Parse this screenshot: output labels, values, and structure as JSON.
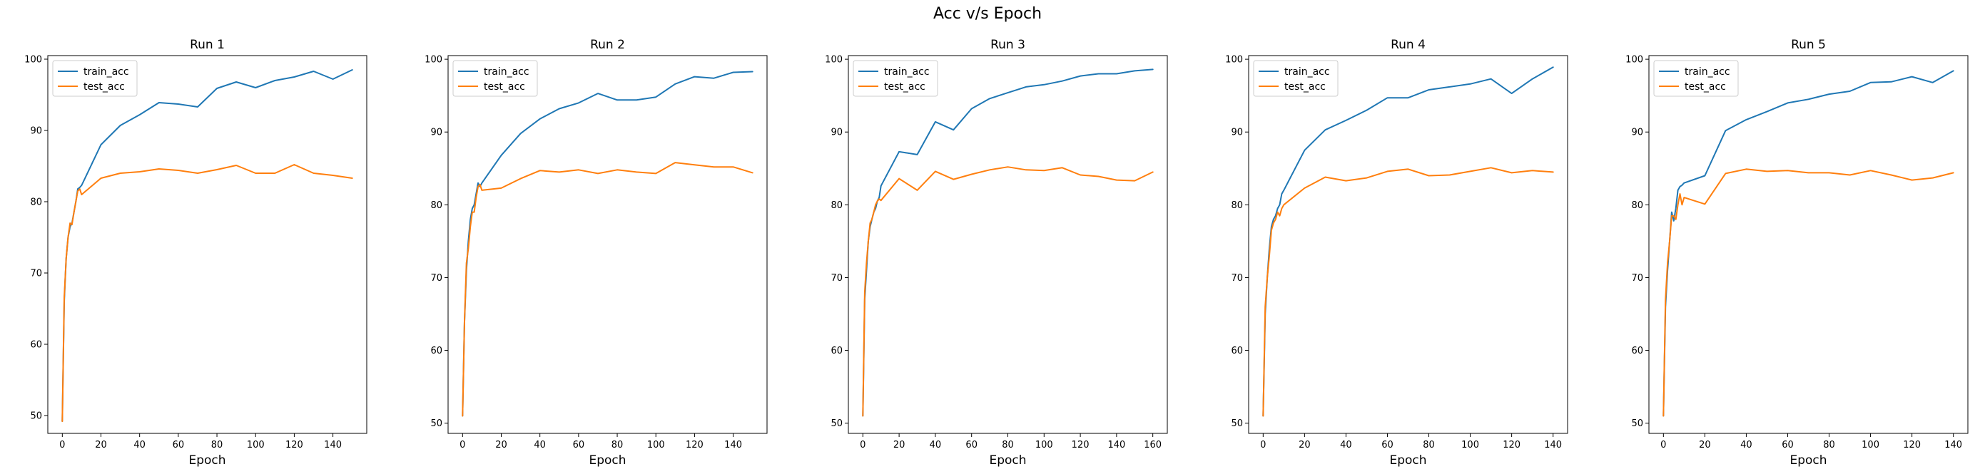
{
  "figure_title": "Acc v/s Epoch",
  "colors": {
    "train": "#1f77b4",
    "test": "#ff7f0e"
  },
  "chart_data": [
    {
      "type": "line",
      "title": "Run 1",
      "xlabel": "Epoch",
      "ylabel": "",
      "xlim": [
        -7.5,
        157.5
      ],
      "ylim": [
        47.5,
        100.5
      ],
      "xticks": [
        0,
        20,
        40,
        60,
        80,
        100,
        120,
        140
      ],
      "yticks": [
        50,
        60,
        70,
        80,
        90,
        100
      ],
      "legend": "top-left",
      "series": [
        {
          "name": "train_acc",
          "x": [
            0,
            1,
            2,
            3,
            4,
            5,
            6,
            7,
            8,
            9,
            10,
            20,
            30,
            40,
            50,
            60,
            70,
            80,
            90,
            100,
            110,
            120,
            130,
            140,
            150
          ],
          "y": [
            49.2,
            66,
            72,
            75,
            76.5,
            77,
            78.5,
            80,
            81.8,
            82,
            82.3,
            88,
            90.7,
            92.2,
            93.9,
            93.7,
            93.3,
            95.9,
            96.8,
            96,
            97,
            97.5,
            98.3,
            97.2,
            98.5
          ]
        },
        {
          "name": "test_acc",
          "x": [
            0,
            1,
            2,
            3,
            4,
            5,
            6,
            7,
            8,
            9,
            10,
            20,
            30,
            40,
            50,
            60,
            70,
            80,
            90,
            100,
            110,
            120,
            130,
            140,
            150
          ],
          "y": [
            49.2,
            66.5,
            72,
            75,
            77,
            76.8,
            78.5,
            80,
            81.5,
            81.8,
            81,
            83.3,
            84,
            84.2,
            84.6,
            84.4,
            84,
            84.5,
            85.1,
            84,
            84,
            85.2,
            84,
            83.7,
            83.3
          ]
        }
      ]
    },
    {
      "type": "line",
      "title": "Run 2",
      "xlabel": "Epoch",
      "ylabel": "",
      "xlim": [
        -7.5,
        157.5
      ],
      "ylim": [
        48.6,
        100.5
      ],
      "xticks": [
        0,
        20,
        40,
        60,
        80,
        100,
        120,
        140
      ],
      "yticks": [
        50,
        60,
        70,
        80,
        90,
        100
      ],
      "legend": "top-left",
      "series": [
        {
          "name": "train_acc",
          "x": [
            0,
            1,
            2,
            3,
            4,
            5,
            6,
            7,
            8,
            9,
            10,
            20,
            30,
            40,
            50,
            60,
            70,
            80,
            90,
            100,
            110,
            120,
            130,
            140,
            150
          ],
          "y": [
            51,
            64,
            71,
            75,
            78,
            79.5,
            80,
            81.5,
            83,
            82.5,
            83,
            86.8,
            89.8,
            91.8,
            93.2,
            94,
            95.3,
            94.4,
            94.4,
            94.8,
            96.6,
            97.6,
            97.4,
            98.2,
            98.3
          ]
        },
        {
          "name": "test_acc",
          "x": [
            0,
            1,
            2,
            3,
            4,
            5,
            6,
            7,
            8,
            9,
            10,
            20,
            30,
            40,
            50,
            60,
            70,
            80,
            90,
            100,
            110,
            120,
            130,
            140,
            150
          ],
          "y": [
            51,
            64,
            72,
            74,
            77,
            79,
            79,
            81,
            82.5,
            82.8,
            82,
            82.3,
            83.6,
            84.7,
            84.5,
            84.8,
            84.3,
            84.8,
            84.5,
            84.3,
            85.8,
            85.5,
            85.2,
            85.2,
            84.4
          ]
        }
      ]
    },
    {
      "type": "line",
      "title": "Run 3",
      "xlabel": "Epoch",
      "ylabel": "",
      "xlim": [
        -8,
        168
      ],
      "ylim": [
        48.6,
        100.5
      ],
      "xticks": [
        0,
        20,
        40,
        60,
        80,
        100,
        120,
        140,
        160
      ],
      "yticks": [
        50,
        60,
        70,
        80,
        90,
        100
      ],
      "legend": "top-left",
      "series": [
        {
          "name": "train_acc",
          "x": [
            0,
            1,
            2,
            3,
            4,
            5,
            6,
            7,
            8,
            9,
            10,
            20,
            30,
            40,
            50,
            60,
            70,
            80,
            90,
            100,
            110,
            120,
            130,
            140,
            150,
            160
          ],
          "y": [
            51,
            67,
            71,
            75,
            77,
            78,
            79,
            79.5,
            80.5,
            81,
            82.6,
            87.3,
            86.9,
            91.4,
            90.3,
            93.2,
            94.6,
            95.4,
            96.2,
            96.5,
            97,
            97.7,
            98,
            98,
            98.4,
            98.6
          ]
        },
        {
          "name": "test_acc",
          "x": [
            0,
            1,
            2,
            3,
            4,
            5,
            6,
            7,
            8,
            9,
            10,
            20,
            30,
            40,
            50,
            60,
            70,
            80,
            90,
            100,
            110,
            120,
            130,
            140,
            150,
            160
          ],
          "y": [
            51,
            68,
            72,
            75,
            77.5,
            78,
            79,
            80,
            80.5,
            80.8,
            80.6,
            83.6,
            82,
            84.6,
            83.5,
            84.2,
            84.8,
            85.2,
            84.8,
            84.7,
            85.1,
            84.1,
            83.9,
            83.4,
            83.3,
            84.5
          ]
        }
      ]
    },
    {
      "type": "line",
      "title": "Run 4",
      "xlabel": "Epoch",
      "ylabel": "",
      "xlim": [
        -7,
        147
      ],
      "ylim": [
        48.6,
        100.5
      ],
      "xticks": [
        0,
        20,
        40,
        60,
        80,
        100,
        120,
        140
      ],
      "yticks": [
        50,
        60,
        70,
        80,
        90,
        100
      ],
      "legend": "top-left",
      "series": [
        {
          "name": "train_acc",
          "x": [
            0,
            1,
            2,
            3,
            4,
            5,
            6,
            7,
            8,
            9,
            10,
            20,
            30,
            40,
            50,
            60,
            70,
            80,
            90,
            100,
            110,
            120,
            130,
            140
          ],
          "y": [
            51,
            65,
            70,
            74,
            77,
            78,
            78.5,
            79.5,
            80,
            81.5,
            82,
            87.5,
            90.3,
            91.6,
            93,
            94.7,
            94.7,
            95.8,
            96.2,
            96.6,
            97.3,
            95.3,
            97.3,
            98.9
          ]
        },
        {
          "name": "test_acc",
          "x": [
            0,
            1,
            2,
            3,
            4,
            5,
            6,
            7,
            8,
            9,
            10,
            20,
            30,
            40,
            50,
            60,
            70,
            80,
            90,
            100,
            110,
            120,
            130,
            140
          ],
          "y": [
            51,
            66,
            70,
            73,
            76.5,
            77.5,
            78,
            79,
            78.5,
            79.5,
            80,
            82.3,
            83.8,
            83.3,
            83.7,
            84.6,
            84.9,
            84,
            84.1,
            84.6,
            85.1,
            84.4,
            84.7,
            84.5
          ]
        }
      ]
    },
    {
      "type": "line",
      "title": "Run 5",
      "xlabel": "Epoch",
      "ylabel": "",
      "xlim": [
        -7,
        147
      ],
      "ylim": [
        48.6,
        100.5
      ],
      "xticks": [
        0,
        20,
        40,
        60,
        80,
        100,
        120,
        140
      ],
      "yticks": [
        50,
        60,
        70,
        80,
        90,
        100
      ],
      "legend": "top-left",
      "series": [
        {
          "name": "train_acc",
          "x": [
            0,
            1,
            2,
            3,
            4,
            5,
            6,
            7,
            8,
            9,
            10,
            20,
            30,
            40,
            50,
            60,
            70,
            80,
            90,
            100,
            110,
            120,
            130,
            140
          ],
          "y": [
            51,
            66,
            71,
            75,
            79,
            77.8,
            79.5,
            82,
            82.5,
            82.7,
            83,
            84,
            90.2,
            91.7,
            92.8,
            94,
            94.5,
            95.2,
            95.6,
            96.8,
            96.9,
            97.6,
            96.8,
            98.4
          ]
        },
        {
          "name": "test_acc",
          "x": [
            0,
            1,
            2,
            3,
            4,
            5,
            6,
            7,
            8,
            9,
            10,
            20,
            30,
            40,
            50,
            60,
            70,
            80,
            90,
            100,
            110,
            120,
            130,
            140
          ],
          "y": [
            51,
            67,
            72,
            75,
            78.5,
            78.5,
            78,
            80,
            81.5,
            80,
            81,
            80.1,
            84.3,
            84.9,
            84.6,
            84.7,
            84.4,
            84.4,
            84.1,
            84.7,
            84.1,
            83.4,
            83.7,
            84.4
          ]
        }
      ]
    }
  ]
}
